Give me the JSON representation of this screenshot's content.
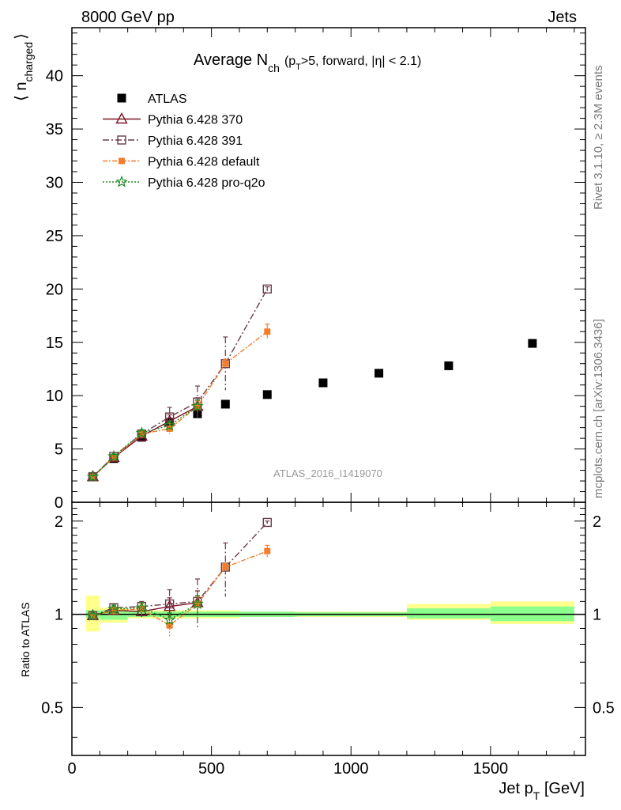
{
  "header": {
    "left": "8000 GeV pp",
    "right": "Jets"
  },
  "side": {
    "rivet": "Rivet 3.1.10, ≥ 2.3M events",
    "mcplots": "mcplots.cern.ch [arXiv:1306.3436]"
  },
  "title": {
    "main": "Average N",
    "sub": "ch",
    "rest": "(p",
    "rest_sub": "T",
    "rest2": ">5, forward, |η| < 2.1)"
  },
  "watermark": "ATLAS_2016_I1419070",
  "axes": {
    "ylabel_main": "⟨ n",
    "ylabel_sub": "charged",
    "ylabel_end": "⟩",
    "ylabel_ratio": "Ratio to ATLAS",
    "xlabel_main": "Jet p",
    "xlabel_sub": "T",
    "xlabel_end": " [GeV]"
  },
  "colors": {
    "atlas": "#000000",
    "p370": "#7f1428",
    "p391": "#6b3c4a",
    "default": "#f47c2a",
    "proq2o": "#1e8a1e",
    "band_inner": "#8cff8c",
    "band_outer": "#ffff8c"
  },
  "chart_data": [
    {
      "type": "scatter",
      "panel": "main",
      "xlim": [
        0,
        1840
      ],
      "ylim": [
        0,
        44.5
      ],
      "yticks": [
        0,
        5,
        10,
        15,
        20,
        25,
        30,
        35,
        40
      ],
      "legend_position": "top-left",
      "series": [
        {
          "name": "ATLAS",
          "key": "atlas",
          "marker": "square-filled",
          "x": [
            75,
            150,
            250,
            350,
            450,
            550,
            700,
            900,
            1100,
            1350,
            1650
          ],
          "y": [
            2.4,
            4.1,
            6.1,
            7.5,
            8.3,
            9.2,
            10.1,
            11.2,
            12.1,
            12.8,
            14.9
          ],
          "err": []
        },
        {
          "name": "Pythia 6.428 370",
          "key": "p370",
          "marker": "triangle-open",
          "dash": "",
          "x": [
            75,
            150,
            250,
            350,
            450
          ],
          "y": [
            2.4,
            4.2,
            6.2,
            7.6,
            9.0
          ],
          "err": [
            0.1,
            0.15,
            0.25,
            0.6,
            0.8
          ]
        },
        {
          "name": "Pythia 6.428 391",
          "key": "p391",
          "marker": "square-open",
          "dash": "8,3,2,3",
          "x": [
            75,
            150,
            250,
            350,
            450,
            550,
            700
          ],
          "y": [
            2.4,
            4.3,
            6.4,
            8.0,
            9.4,
            13.0,
            20.0
          ],
          "err": [
            0.1,
            0.2,
            0.3,
            0.9,
            1.5,
            2.5,
            0.2
          ]
        },
        {
          "name": "Pythia 6.428 default",
          "key": "default",
          "marker": "square-filled",
          "dash": "6,2,2,2",
          "x": [
            75,
            150,
            250,
            350,
            450,
            550,
            700
          ],
          "y": [
            2.4,
            4.2,
            6.4,
            6.9,
            9.0,
            13.0,
            16.0
          ],
          "err": [
            0.1,
            0.2,
            0.3,
            0.5,
            0.5,
            0.4,
            0.7
          ]
        },
        {
          "name": "Pythia 6.428 pro-q2o",
          "key": "proq2o",
          "marker": "star-open",
          "dash": "2,2",
          "x": [
            75,
            150,
            250,
            350,
            450
          ],
          "y": [
            2.4,
            4.3,
            6.5,
            7.2,
            9.0
          ],
          "err": [
            0.1,
            0.2,
            0.3,
            0.4,
            0.6
          ]
        }
      ]
    },
    {
      "type": "scatter",
      "panel": "ratio",
      "xlim": [
        0,
        1840
      ],
      "ylim": [
        0.35,
        2.3
      ],
      "yticks": [
        0.5,
        1,
        2
      ],
      "xticks": [
        0,
        500,
        1000,
        1500
      ],
      "reference_line": 1,
      "bands": [
        {
          "x0": 50,
          "x1": 100,
          "inner": [
            0.97,
            1.03
          ],
          "outer": [
            0.88,
            1.15
          ]
        },
        {
          "x0": 100,
          "x1": 200,
          "inner": [
            0.96,
            1.03
          ],
          "outer": [
            0.94,
            1.05
          ]
        },
        {
          "x0": 200,
          "x1": 300,
          "inner": [
            0.98,
            1.02
          ],
          "outer": [
            0.97,
            1.03
          ]
        },
        {
          "x0": 300,
          "x1": 400,
          "inner": [
            0.98,
            1.02
          ],
          "outer": [
            0.97,
            1.03
          ]
        },
        {
          "x0": 400,
          "x1": 500,
          "inner": [
            0.98,
            1.02
          ],
          "outer": [
            0.97,
            1.03
          ]
        },
        {
          "x0": 500,
          "x1": 600,
          "inner": [
            0.98,
            1.02
          ],
          "outer": [
            0.97,
            1.03
          ]
        },
        {
          "x0": 600,
          "x1": 800,
          "inner": [
            0.98,
            1.02
          ],
          "outer": [
            0.98,
            1.02
          ]
        },
        {
          "x0": 800,
          "x1": 1000,
          "inner": [
            0.985,
            1.015
          ],
          "outer": [
            0.98,
            1.02
          ]
        },
        {
          "x0": 1000,
          "x1": 1200,
          "inner": [
            0.985,
            1.015
          ],
          "outer": [
            0.98,
            1.02
          ]
        },
        {
          "x0": 1200,
          "x1": 1500,
          "inner": [
            0.97,
            1.045
          ],
          "outer": [
            0.96,
            1.08
          ]
        },
        {
          "x0": 1500,
          "x1": 1800,
          "inner": [
            0.95,
            1.06
          ],
          "outer": [
            0.93,
            1.1
          ]
        }
      ],
      "series": [
        {
          "name": "Pythia 6.428 370",
          "key": "p370",
          "marker": "triangle-open",
          "dash": "",
          "x": [
            75,
            150,
            250,
            350,
            450
          ],
          "y": [
            0.99,
            1.03,
            1.02,
            1.06,
            1.09
          ],
          "err": [
            0.02,
            0.03,
            0.04,
            0.07,
            0.1
          ]
        },
        {
          "name": "Pythia 6.428 391",
          "key": "p391",
          "marker": "square-open",
          "dash": "8,3,2,3",
          "x": [
            75,
            150,
            250,
            350,
            450,
            550,
            700
          ],
          "y": [
            0.99,
            1.05,
            1.06,
            1.08,
            1.1,
            1.42,
            1.98
          ],
          "err": [
            0.02,
            0.03,
            0.04,
            0.12,
            0.2,
            0.28,
            0.02
          ]
        },
        {
          "name": "Pythia 6.428 default",
          "key": "default",
          "marker": "square-filled",
          "dash": "6,2,2,2",
          "x": [
            75,
            150,
            250,
            350,
            450,
            550,
            700
          ],
          "y": [
            0.99,
            1.03,
            1.04,
            0.92,
            1.08,
            1.42,
            1.6
          ],
          "err": [
            0.02,
            0.03,
            0.04,
            0.07,
            0.06,
            0.04,
            0.07
          ]
        },
        {
          "name": "Pythia 6.428 pro-q2o",
          "key": "proq2o",
          "marker": "star-open",
          "dash": "2,2",
          "x": [
            75,
            150,
            250,
            350,
            450
          ],
          "y": [
            0.99,
            1.04,
            1.05,
            0.96,
            1.08
          ],
          "err": [
            0.02,
            0.03,
            0.04,
            0.05,
            0.07
          ]
        }
      ]
    }
  ]
}
